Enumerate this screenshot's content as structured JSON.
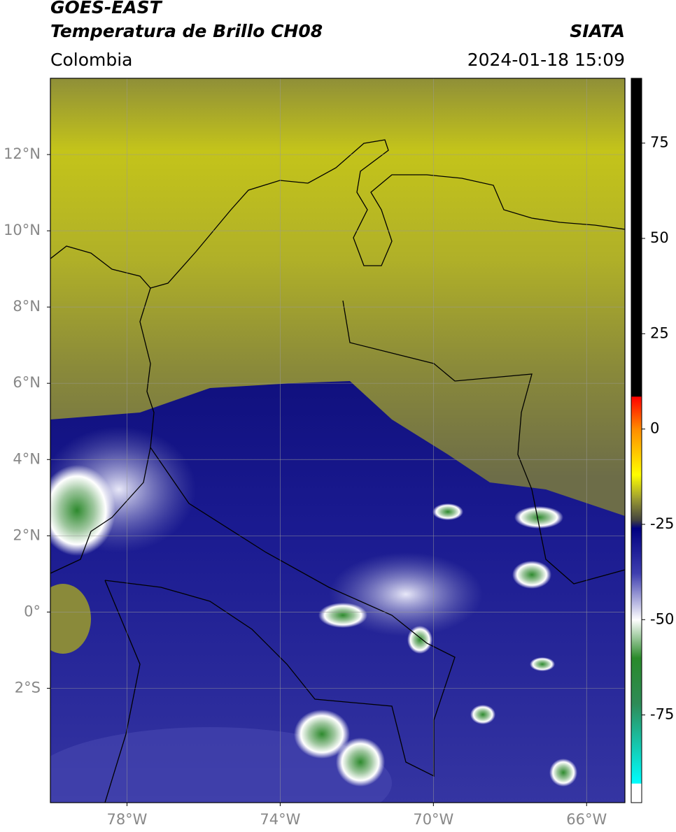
{
  "header": {
    "title": "GOES-EAST",
    "subtitle": "Temperatura de Brillo CH08",
    "source": "SIATA",
    "region": "Colombia",
    "datetime": "2024-01-18 15:09"
  },
  "map": {
    "xlim": [
      -80,
      -65
    ],
    "ylim": [
      -5,
      14
    ],
    "grid": true,
    "xticks": [
      {
        "value": -78,
        "label": "78°W"
      },
      {
        "value": -74,
        "label": "74°W"
      },
      {
        "value": -70,
        "label": "70°W"
      },
      {
        "value": -66,
        "label": "66°W"
      }
    ],
    "yticks": [
      {
        "value": 12,
        "label": "12°N"
      },
      {
        "value": 10,
        "label": "10°N"
      },
      {
        "value": 8,
        "label": "8°N"
      },
      {
        "value": 6,
        "label": "6°N"
      },
      {
        "value": 4,
        "label": "4°N"
      },
      {
        "value": 2,
        "label": "2°N"
      },
      {
        "value": 0,
        "label": "0°"
      },
      {
        "value": -2,
        "label": "2°S"
      }
    ]
  },
  "colorbar": {
    "ylim": [
      -98,
      92
    ],
    "ticks": [
      75,
      50,
      25,
      0,
      -25,
      -50,
      -75
    ],
    "stops": [
      {
        "value": 92,
        "color": "#000000"
      },
      {
        "value": 8.5,
        "color": "#000000"
      },
      {
        "value": 8.5,
        "color": "#ff0000"
      },
      {
        "value": 0,
        "color": "#ff8c00"
      },
      {
        "value": -12,
        "color": "#ffff00"
      },
      {
        "value": -18,
        "color": "#a0a030"
      },
      {
        "value": -24,
        "color": "#404040"
      },
      {
        "value": -26,
        "color": "#000080"
      },
      {
        "value": -38,
        "color": "#4040b0"
      },
      {
        "value": -50,
        "color": "#ffffff"
      },
      {
        "value": -60,
        "color": "#2a8a2a"
      },
      {
        "value": -72,
        "color": "#2e8b57"
      },
      {
        "value": -93,
        "color": "#00ffff"
      },
      {
        "value": -93,
        "color": "#ffffff"
      },
      {
        "value": -98,
        "color": "#ffffff"
      }
    ]
  }
}
